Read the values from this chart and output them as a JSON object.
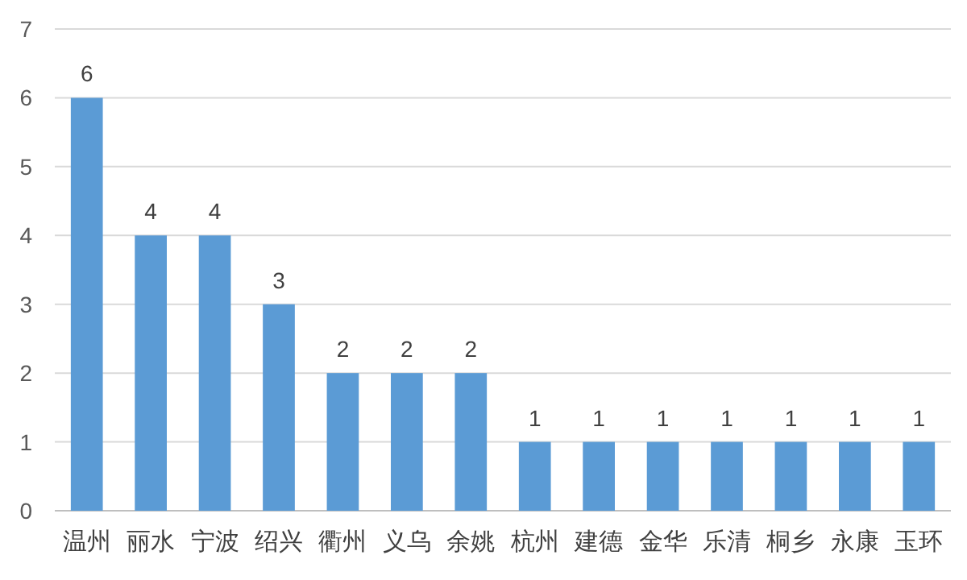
{
  "chart_data": {
    "type": "bar",
    "categories": [
      "温州",
      "丽水",
      "宁波",
      "绍兴",
      "衢州",
      "义乌",
      "余姚",
      "杭州",
      "建德",
      "金华",
      "乐清",
      "桐乡",
      "永康",
      "玉环"
    ],
    "values": [
      6,
      4,
      4,
      3,
      2,
      2,
      2,
      1,
      1,
      1,
      1,
      1,
      1,
      1
    ],
    "color": "#5b9bd5",
    "ylim": [
      0,
      7
    ],
    "yticks": [
      0,
      1,
      2,
      3,
      4,
      5,
      6,
      7
    ],
    "grid": "y",
    "data_labels": true
  }
}
